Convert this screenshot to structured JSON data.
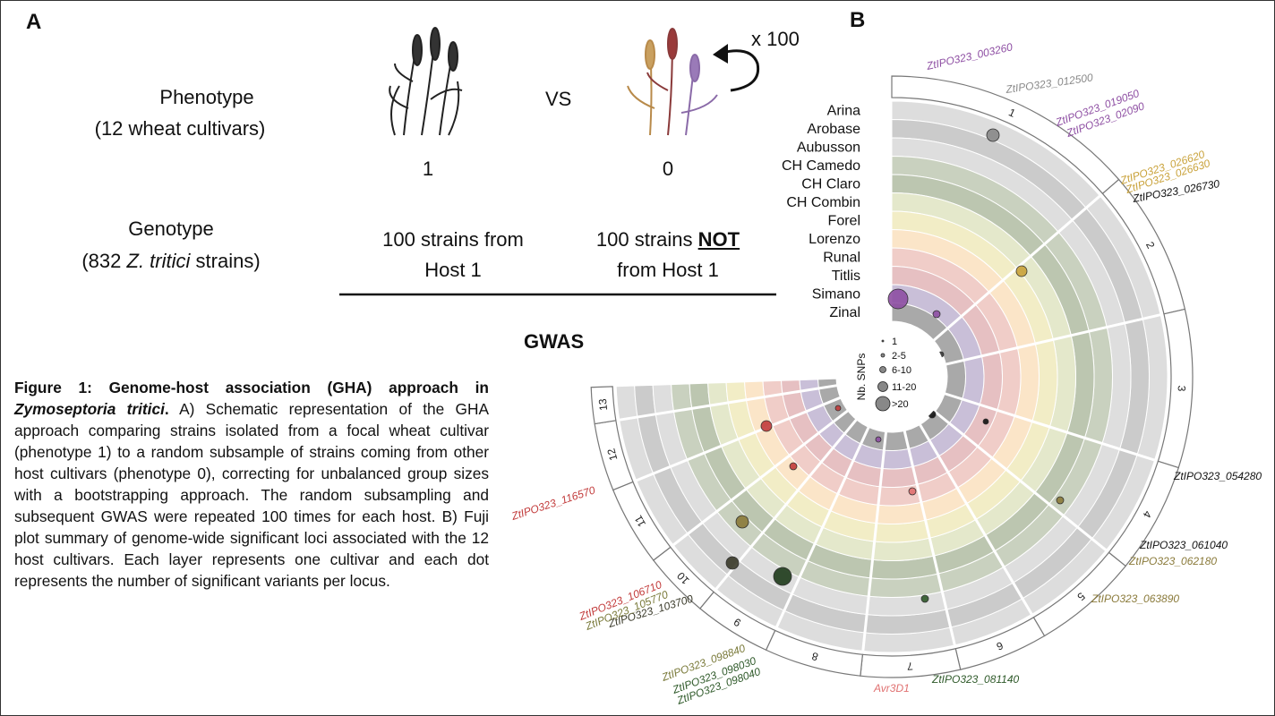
{
  "panel_a": {
    "label": "A",
    "phenotype": {
      "title": "Phenotype",
      "detail": "(12 wheat cultivars)"
    },
    "vs": "VS",
    "repeat": "x 100",
    "phenotype_values": [
      "1",
      "0"
    ],
    "genotype": {
      "title": "Genotype",
      "detail_pre": "(832",
      "detail_italic": "Z. tritici",
      "detail_post": "strains)"
    },
    "group_1": [
      "100 strains from",
      "Host 1"
    ],
    "group_0": {
      "line1_pre": "100 strains",
      "line1_bold": "NOT",
      "line2": "from Host 1"
    },
    "method": "GWAS"
  },
  "caption": {
    "title_pre": "Figure 1: Genome-host association (GHA) approach in",
    "title_italic": "Zymoseptoria tritici",
    "title_end": ".",
    "body": "A) Schematic representation of the GHA approach comparing strains isolated from a focal wheat cultivar (phenotype 1) to a random subsample of strains coming from other host cultivars (phenotype 0), correcting for unbalanced group sizes with a bootstrapping approach. The random subsampling and subsequent GWAS were repeated 100 times for each host. B) Fuji plot summary of genome-wide significant loci associated with the 12 host cultivars. Each layer represents one cultivar and each dot represents the number of significant variants per locus."
  },
  "panel_b": {
    "label": "B",
    "cultivars": [
      "Arina",
      "Arobase",
      "Aubusson",
      "CH Camedo",
      "CH Claro",
      "CH Combin",
      "Forel",
      "Lorenzo",
      "Runal",
      "Titlis",
      "Simano",
      "Zinal"
    ],
    "chromosomes": [
      "1",
      "2",
      "3",
      "4",
      "5",
      "6",
      "7",
      "8",
      "9",
      "10",
      "11",
      "12",
      "13"
    ],
    "legend": {
      "title": "Nb. SNPs",
      "sizes": [
        "1",
        "2-5",
        "6-10",
        "11-20",
        ">20"
      ]
    },
    "loci": [
      {
        "label": "ZtIPO323_003260",
        "color": "#8e4fa3"
      },
      {
        "label": "ZtIPO323_012500",
        "color": "#8a8a8a"
      },
      {
        "label": "ZtIPO323_019050",
        "color": "#8e4fa3"
      },
      {
        "label": "ZtIPO323_02090",
        "color": "#8e4fa3"
      },
      {
        "label": "ZtIPO323_026620",
        "color": "#c9a23a"
      },
      {
        "label": "ZtIPO323_026630",
        "color": "#c9a23a"
      },
      {
        "label": "ZtIPO323_026730",
        "color": "#111111"
      },
      {
        "label": "ZtIPO323_054280",
        "color": "#111111"
      },
      {
        "label": "ZtIPO323_061040",
        "color": "#111111"
      },
      {
        "label": "ZtIPO323_062180",
        "color": "#8a7a3a"
      },
      {
        "label": "ZtIPO323_063890",
        "color": "#8a7a3a"
      },
      {
        "label": "ZtIPO323_081140",
        "color": "#2f5a2a"
      },
      {
        "label": "Avr3D1",
        "color": "#e07070"
      },
      {
        "label": "ZtIPO323_098040",
        "color": "#2f5a2a"
      },
      {
        "label": "ZtIPO323_098030",
        "color": "#2f5a2a"
      },
      {
        "label": "ZtIPO323_098840",
        "color": "#7a7a3a"
      },
      {
        "label": "ZtIPO323_103700",
        "color": "#3a3a2a"
      },
      {
        "label": "ZtIPO323_105770",
        "color": "#7a7a3a"
      },
      {
        "label": "ZtIPO323_106710",
        "color": "#c23b3b"
      },
      {
        "label": "ZtIPO323_116570",
        "color": "#c23b3b"
      }
    ]
  }
}
